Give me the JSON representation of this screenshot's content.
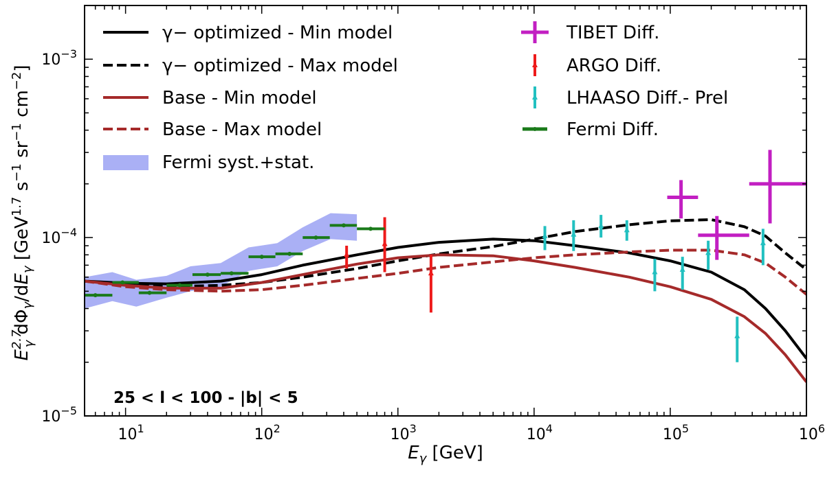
{
  "chart_data": {
    "type": "line",
    "xscale": "log",
    "yscale": "log",
    "xlim": [
      5,
      1000000
    ],
    "ylim": [
      1e-05,
      0.002
    ],
    "xlabel": "E_γ  [GeV]",
    "ylabel": "E_γ^{2.7} dΦ_γ/dE_γ  [GeV^{1.7} s^{-1} sr^{-1} cm^{-2}]",
    "region_label": "25 < l < 100 - |b| < 5",
    "x_ticks": [
      {
        "value": 10,
        "base": "10",
        "exp": "1"
      },
      {
        "value": 100,
        "base": "10",
        "exp": "2"
      },
      {
        "value": 1000,
        "base": "10",
        "exp": "3"
      },
      {
        "value": 10000,
        "base": "10",
        "exp": "4"
      },
      {
        "value": 100000,
        "base": "10",
        "exp": "5"
      },
      {
        "value": 1000000,
        "base": "10",
        "exp": "6"
      }
    ],
    "y_ticks": [
      {
        "value": 1e-05,
        "base": "10",
        "exp": "−5"
      },
      {
        "value": 0.0001,
        "base": "10",
        "exp": "−4"
      },
      {
        "value": 0.001,
        "base": "10",
        "exp": "−3"
      }
    ],
    "series": [
      {
        "name": "γ− optimized - Min model",
        "style": "solid",
        "color": "#000000",
        "points": [
          [
            5,
            5.7e-05
          ],
          [
            10,
            5.55e-05
          ],
          [
            20,
            5.5e-05
          ],
          [
            50,
            5.7e-05
          ],
          [
            100,
            6.2e-05
          ],
          [
            200,
            7e-05
          ],
          [
            500,
            8e-05
          ],
          [
            1000,
            8.8e-05
          ],
          [
            2000,
            9.4e-05
          ],
          [
            5000,
            9.8e-05
          ],
          [
            10000,
            9.6e-05
          ],
          [
            20000,
            9e-05
          ],
          [
            50000,
            8.2e-05
          ],
          [
            100000,
            7.4e-05
          ],
          [
            200000,
            6.4e-05
          ],
          [
            350000,
            5.1e-05
          ],
          [
            500000,
            4e-05
          ],
          [
            700000,
            3e-05
          ],
          [
            1000000,
            2.1e-05
          ]
        ]
      },
      {
        "name": "γ− optimized - Max model",
        "style": "dashed",
        "color": "#000000",
        "points": [
          [
            5,
            5.7e-05
          ],
          [
            10,
            5.4e-05
          ],
          [
            20,
            5.3e-05
          ],
          [
            50,
            5.4e-05
          ],
          [
            100,
            5.6e-05
          ],
          [
            200,
            6e-05
          ],
          [
            500,
            6.7e-05
          ],
          [
            1000,
            7.4e-05
          ],
          [
            2000,
            8.1e-05
          ],
          [
            5000,
            8.9e-05
          ],
          [
            10000,
            9.8e-05
          ],
          [
            20000,
            0.000108
          ],
          [
            50000,
            0.000118
          ],
          [
            100000,
            0.000124
          ],
          [
            200000,
            0.000126
          ],
          [
            350000,
            0.000115
          ],
          [
            500000,
            0.000102
          ],
          [
            700000,
            8.2e-05
          ],
          [
            1000000,
            6.6e-05
          ]
        ]
      },
      {
        "name": "Base - Min model",
        "style": "solid",
        "color": "#a52a2a",
        "points": [
          [
            5,
            5.7e-05
          ],
          [
            10,
            5.4e-05
          ],
          [
            20,
            5.2e-05
          ],
          [
            50,
            5.2e-05
          ],
          [
            100,
            5.6e-05
          ],
          [
            200,
            6.2e-05
          ],
          [
            500,
            7.1e-05
          ],
          [
            1000,
            7.7e-05
          ],
          [
            2000,
            8e-05
          ],
          [
            5000,
            7.9e-05
          ],
          [
            10000,
            7.4e-05
          ],
          [
            20000,
            6.8e-05
          ],
          [
            50000,
            6e-05
          ],
          [
            100000,
            5.3e-05
          ],
          [
            200000,
            4.5e-05
          ],
          [
            350000,
            3.6e-05
          ],
          [
            500000,
            2.9e-05
          ],
          [
            700000,
            2.2e-05
          ],
          [
            1000000,
            1.55e-05
          ]
        ]
      },
      {
        "name": "Base - Max model",
        "style": "dashed",
        "color": "#a52a2a",
        "points": [
          [
            5,
            5.7e-05
          ],
          [
            10,
            5.3e-05
          ],
          [
            20,
            5.1e-05
          ],
          [
            50,
            5e-05
          ],
          [
            100,
            5.1e-05
          ],
          [
            200,
            5.4e-05
          ],
          [
            500,
            5.9e-05
          ],
          [
            1000,
            6.3e-05
          ],
          [
            2000,
            6.8e-05
          ],
          [
            5000,
            7.3e-05
          ],
          [
            10000,
            7.7e-05
          ],
          [
            20000,
            8e-05
          ],
          [
            50000,
            8.3e-05
          ],
          [
            100000,
            8.5e-05
          ],
          [
            200000,
            8.5e-05
          ],
          [
            350000,
            8e-05
          ],
          [
            500000,
            7.2e-05
          ],
          [
            700000,
            6e-05
          ],
          [
            1000000,
            4.8e-05
          ]
        ]
      }
    ],
    "band": {
      "name": "Fermi syst.+stat.",
      "color": "#aab0f5",
      "upper": [
        [
          5,
          6e-05
        ],
        [
          8,
          6.4e-05
        ],
        [
          12,
          5.8e-05
        ],
        [
          20,
          6.1e-05
        ],
        [
          30,
          6.9e-05
        ],
        [
          50,
          7.2e-05
        ],
        [
          80,
          8.8e-05
        ],
        [
          130,
          9.3e-05
        ],
        [
          200,
          0.000114
        ],
        [
          320,
          0.000137
        ],
        [
          500,
          0.000135
        ]
      ],
      "lower": [
        [
          500,
          9.6e-05
        ],
        [
          320,
          9.8e-05
        ],
        [
          200,
          8.4e-05
        ],
        [
          130,
          6.9e-05
        ],
        [
          80,
          6.5e-05
        ],
        [
          50,
          5.3e-05
        ],
        [
          30,
          5e-05
        ],
        [
          20,
          4.6e-05
        ],
        [
          12,
          4.1e-05
        ],
        [
          8,
          4.4e-05
        ],
        [
          5,
          4e-05
        ]
      ]
    },
    "data_sets": [
      {
        "name": "TIBET Diff.",
        "color": "#c21fc2",
        "marker": "plus",
        "points": [
          {
            "x": 120000,
            "y": 0.000168,
            "ylo": 0.000128,
            "yhi": 0.00021,
            "xlo": 95000,
            "xhi": 160000
          },
          {
            "x": 220000,
            "y": 0.000103,
            "ylo": 7.5e-05,
            "yhi": 0.000132,
            "xlo": 160000,
            "xhi": 380000
          },
          {
            "x": 540000,
            "y": 0.0002,
            "ylo": 0.00012,
            "yhi": 0.00031,
            "xlo": 380000,
            "xhi": 1000000
          }
        ]
      },
      {
        "name": "ARGO Diff.",
        "color": "#ee1b1b",
        "marker": "triangle",
        "points": [
          {
            "x": 420,
            "y": 8e-05,
            "ylo": 6.7e-05,
            "yhi": 9e-05
          },
          {
            "x": 800,
            "y": 9.2e-05,
            "ylo": 6.4e-05,
            "yhi": 0.00013
          },
          {
            "x": 1750,
            "y": 6.3e-05,
            "ylo": 3.8e-05,
            "yhi": 8e-05
          }
        ]
      },
      {
        "name": "LHAASO Diff.- Prel",
        "color": "#22c0c0",
        "marker": "triangle",
        "points": [
          {
            "x": 12000,
            "y": 0.000102,
            "ylo": 8.5e-05,
            "yhi": 0.000116
          },
          {
            "x": 19500,
            "y": 0.000104,
            "ylo": 8.4e-05,
            "yhi": 0.000125
          },
          {
            "x": 31000,
            "y": 0.000116,
            "ylo": 0.0001,
            "yhi": 0.000134
          },
          {
            "x": 48000,
            "y": 0.00011,
            "ylo": 9.6e-05,
            "yhi": 0.000125
          },
          {
            "x": 77000,
            "y": 6.4e-05,
            "ylo": 5e-05,
            "yhi": 7.6e-05
          },
          {
            "x": 123000,
            "y": 6.6e-05,
            "ylo": 5.1e-05,
            "yhi": 7.8e-05
          },
          {
            "x": 190000,
            "y": 8.2e-05,
            "ylo": 6.6e-05,
            "yhi": 9.6e-05
          },
          {
            "x": 310000,
            "y": 2.8e-05,
            "ylo": 2e-05,
            "yhi": 3.6e-05
          },
          {
            "x": 480000,
            "y": 9.3e-05,
            "ylo": 7e-05,
            "yhi": 0.000112
          }
        ]
      },
      {
        "name": "Fermi Diff.",
        "color": "#1a7a1a",
        "marker": "star",
        "points": [
          {
            "x": 6,
            "y": 4.75e-05,
            "xlo": 5,
            "xhi": 8
          },
          {
            "x": 9.5,
            "y": 5.6e-05,
            "xlo": 8,
            "xhi": 12.5
          },
          {
            "x": 15,
            "y": 4.9e-05,
            "xlo": 12.5,
            "xhi": 20
          },
          {
            "x": 25,
            "y": 5.4e-05,
            "xlo": 20,
            "xhi": 31
          },
          {
            "x": 40,
            "y": 6.2e-05,
            "xlo": 31,
            "xhi": 50
          },
          {
            "x": 60,
            "y": 6.3e-05,
            "xlo": 50,
            "xhi": 80
          },
          {
            "x": 100,
            "y": 7.8e-05,
            "xlo": 80,
            "xhi": 126
          },
          {
            "x": 160,
            "y": 8.1e-05,
            "xlo": 126,
            "xhi": 200
          },
          {
            "x": 250,
            "y": 0.0001,
            "xlo": 200,
            "xhi": 316
          },
          {
            "x": 400,
            "y": 0.000117,
            "xlo": 316,
            "xhi": 500
          },
          {
            "x": 630,
            "y": 0.000112,
            "xlo": 500,
            "xhi": 800
          }
        ]
      }
    ],
    "legend": {
      "left": [
        {
          "key": "gamma-min",
          "label": "γ−  optimized - Min model",
          "kind": "line",
          "color": "#000000",
          "dash": false
        },
        {
          "key": "gamma-max",
          "label": "γ−  optimized - Max model",
          "kind": "line",
          "color": "#000000",
          "dash": true
        },
        {
          "key": "base-min",
          "label": "Base - Min model",
          "kind": "line",
          "color": "#a52a2a",
          "dash": false
        },
        {
          "key": "base-max",
          "label": "Base - Max model",
          "kind": "line",
          "color": "#a52a2a",
          "dash": true
        },
        {
          "key": "fermi-band",
          "label": "Fermi syst.+stat.",
          "kind": "patch",
          "color": "#aab0f5",
          "dash": false
        }
      ],
      "right": [
        {
          "key": "tibet",
          "label": "TIBET Diff.",
          "kind": "plus",
          "color": "#c21fc2"
        },
        {
          "key": "argo",
          "label": "ARGO Diff.",
          "kind": "errbar",
          "color": "#ee1b1b"
        },
        {
          "key": "lhaaso",
          "label": "LHAASO Diff.- Prel",
          "kind": "errbar",
          "color": "#22c0c0"
        },
        {
          "key": "fermi",
          "label": "Fermi Diff.",
          "kind": "hbar",
          "color": "#1a7a1a"
        }
      ]
    }
  }
}
